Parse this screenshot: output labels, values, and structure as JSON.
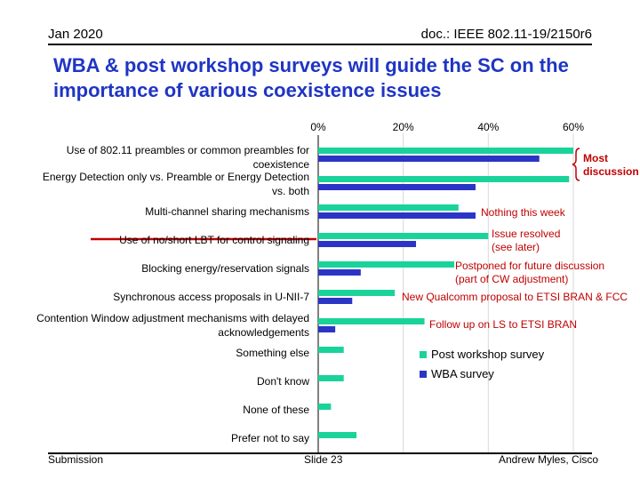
{
  "header": {
    "date": "Jan 2020",
    "doc": "doc.: IEEE 802.11-19/2150r6"
  },
  "title": "WBA & post workshop surveys will guide the SC on the importance of various coexistence issues",
  "footer": {
    "left": "Submission",
    "center": "Slide 23",
    "right": "Andrew Myles, Cisco"
  },
  "colors": {
    "post": "#1ad39a",
    "wba": "#2a35c6",
    "annotation": "#c00000",
    "title": "#1f35c4",
    "strike": "#c00000"
  },
  "chart_data": {
    "type": "bar",
    "orientation": "horizontal",
    "xlim": [
      0,
      60
    ],
    "x_ticks": [
      "0%",
      "20%",
      "40%",
      "60%"
    ],
    "x_tick_values": [
      0,
      20,
      40,
      60
    ],
    "grid": true,
    "legend_position": "right",
    "categories": [
      "Use of 802.11 preambles or common preambles for coexistence",
      "Energy Detection only vs. Preamble or Energy Detection vs. both",
      "Multi-channel sharing mechanisms",
      "Use of no/short LBT for control signaling",
      "Blocking energy/reservation signals",
      "Synchronous access proposals in U-NII-7",
      "Contention Window adjustment mechanisms with delayed acknowledgements",
      "Something else",
      "Don't know",
      "None of these",
      "Prefer not to say"
    ],
    "series": [
      {
        "name": "Post workshop survey",
        "values": [
          60,
          59,
          33,
          40,
          32,
          18,
          25,
          6,
          6,
          3,
          9
        ]
      },
      {
        "name": "WBA survey",
        "values": [
          52,
          37,
          37,
          23,
          10,
          8,
          4,
          null,
          null,
          null,
          null
        ]
      }
    ],
    "annotations": [
      {
        "text": "Most discussion",
        "category_index": 0,
        "bold": true
      },
      {
        "text": "Nothing this week",
        "category_index": 2
      },
      {
        "text": "Issue resolved (see later)",
        "category_index": 3
      },
      {
        "text": "Postponed for future discussion (part of CW adjustment)",
        "category_index": 4
      },
      {
        "text": "New Qualcomm proposal to ETSI BRAN & FCC",
        "category_index": 5
      },
      {
        "text": "Follow up on LS to ETSI BRAN",
        "category_index": 6
      }
    ]
  }
}
